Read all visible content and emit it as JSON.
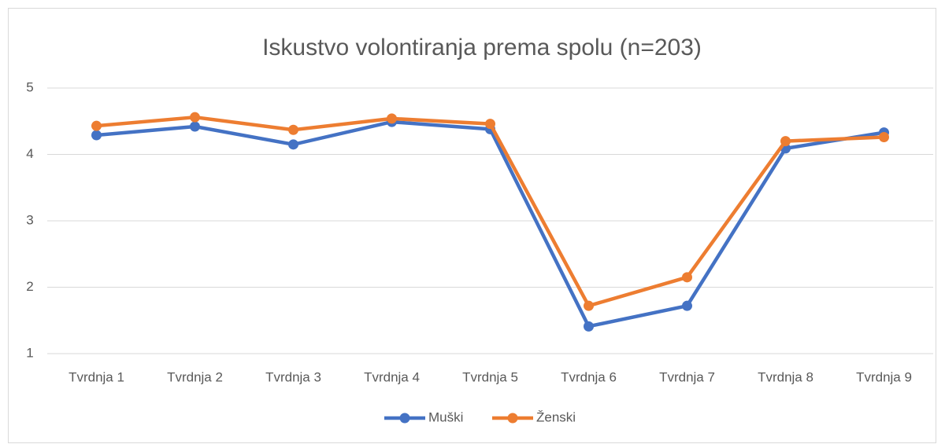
{
  "chart_data": {
    "type": "line",
    "title": "Iskustvo volontiranja prema spolu (n=203)",
    "categories": [
      "Tvrdnja 1",
      "Tvrdnja 2",
      "Tvrdnja 3",
      "Tvrdnja 4",
      "Tvrdnja 5",
      "Tvrdnja 6",
      "Tvrdnja 7",
      "Tvrdnja 8",
      "Tvrdnja 9"
    ],
    "series": [
      {
        "name": "Muški",
        "color": "#4472c4",
        "values": [
          4.29,
          4.42,
          4.15,
          4.49,
          4.38,
          1.41,
          1.72,
          4.09,
          4.33
        ]
      },
      {
        "name": "Ženski",
        "color": "#ed7d31",
        "values": [
          4.43,
          4.56,
          4.37,
          4.54,
          4.46,
          1.72,
          2.15,
          4.2,
          4.26
        ]
      }
    ],
    "ylim": [
      1,
      5
    ],
    "yticks": [
      1,
      2,
      3,
      4,
      5
    ],
    "grid": true,
    "legend": "bottom"
  }
}
